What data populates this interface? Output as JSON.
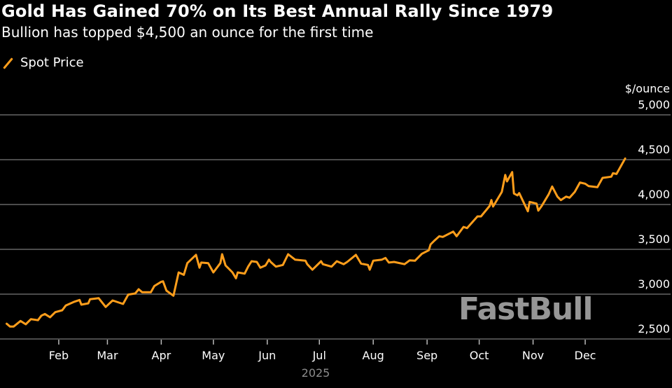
{
  "chart_data": {
    "type": "line",
    "title": "Gold Has Gained 70% on Its Best Annual Rally Since 1979",
    "subtitle": "Bullion has topped $4,500 an ounce for the first time",
    "ylabel": "$/ounce",
    "xlabel": "2025",
    "x_unit": "day of year 2025 (0 = Jan 1)",
    "ylim": [
      2500,
      5000
    ],
    "xlim": [
      0,
      358
    ],
    "grid": true,
    "legend_position": "top-left",
    "y_ticks": [
      {
        "value": 2500,
        "label": "2,500"
      },
      {
        "value": 3000,
        "label": "3,000"
      },
      {
        "value": 3500,
        "label": "3,500"
      },
      {
        "value": 4000,
        "label": "4,000"
      },
      {
        "value": 4500,
        "label": "4,500"
      },
      {
        "value": 5000,
        "label": "5,000"
      }
    ],
    "x_ticks": [
      {
        "day": 31,
        "label": "Feb"
      },
      {
        "day": 59,
        "label": "Mar"
      },
      {
        "day": 90,
        "label": "Apr"
      },
      {
        "day": 120,
        "label": "May"
      },
      {
        "day": 151,
        "label": "Jun"
      },
      {
        "day": 181,
        "label": "Jul"
      },
      {
        "day": 212,
        "label": "Aug"
      },
      {
        "day": 243,
        "label": "Sep"
      },
      {
        "day": 273,
        "label": "Oct"
      },
      {
        "day": 304,
        "label": "Nov"
      },
      {
        "day": 334,
        "label": "Dec"
      }
    ],
    "series": [
      {
        "name": "Spot Price",
        "color": "#ff9e1b",
        "points": [
          [
            1,
            2670
          ],
          [
            3,
            2638
          ],
          [
            5,
            2638
          ],
          [
            9,
            2701
          ],
          [
            12,
            2664
          ],
          [
            15,
            2721
          ],
          [
            19,
            2709
          ],
          [
            21,
            2760
          ],
          [
            23,
            2779
          ],
          [
            26,
            2742
          ],
          [
            29,
            2799
          ],
          [
            33,
            2820
          ],
          [
            35,
            2873
          ],
          [
            40,
            2916
          ],
          [
            43,
            2935
          ],
          [
            44,
            2883
          ],
          [
            48,
            2898
          ],
          [
            49,
            2943
          ],
          [
            54,
            2955
          ],
          [
            58,
            2857
          ],
          [
            62,
            2930
          ],
          [
            68,
            2891
          ],
          [
            71,
            2995
          ],
          [
            75,
            3008
          ],
          [
            77,
            3055
          ],
          [
            79,
            3021
          ],
          [
            84,
            3021
          ],
          [
            86,
            3091
          ],
          [
            90,
            3138
          ],
          [
            91,
            3143
          ],
          [
            93,
            3039
          ],
          [
            97,
            2982
          ],
          [
            100,
            3242
          ],
          [
            103,
            3216
          ],
          [
            105,
            3346
          ],
          [
            110,
            3438
          ],
          [
            112,
            3295
          ],
          [
            113,
            3352
          ],
          [
            117,
            3346
          ],
          [
            120,
            3242
          ],
          [
            124,
            3346
          ],
          [
            125,
            3445
          ],
          [
            127,
            3320
          ],
          [
            129,
            3281
          ],
          [
            131,
            3242
          ],
          [
            133,
            3177
          ],
          [
            134,
            3242
          ],
          [
            138,
            3229
          ],
          [
            140,
            3307
          ],
          [
            142,
            3367
          ],
          [
            145,
            3359
          ],
          [
            147,
            3295
          ],
          [
            150,
            3320
          ],
          [
            152,
            3385
          ],
          [
            153,
            3359
          ],
          [
            156,
            3307
          ],
          [
            160,
            3326
          ],
          [
            163,
            3445
          ],
          [
            167,
            3385
          ],
          [
            173,
            3373
          ],
          [
            174,
            3334
          ],
          [
            177,
            3273
          ],
          [
            182,
            3367
          ],
          [
            183,
            3334
          ],
          [
            188,
            3307
          ],
          [
            191,
            3367
          ],
          [
            195,
            3334
          ],
          [
            197,
            3359
          ],
          [
            202,
            3438
          ],
          [
            205,
            3341
          ],
          [
            209,
            3326
          ],
          [
            210,
            3273
          ],
          [
            212,
            3373
          ],
          [
            217,
            3385
          ],
          [
            219,
            3404
          ],
          [
            221,
            3352
          ],
          [
            224,
            3359
          ],
          [
            230,
            3334
          ],
          [
            233,
            3377
          ],
          [
            236,
            3373
          ],
          [
            240,
            3451
          ],
          [
            244,
            3490
          ],
          [
            245,
            3555
          ],
          [
            247,
            3594
          ],
          [
            250,
            3646
          ],
          [
            252,
            3638
          ],
          [
            258,
            3698
          ],
          [
            260,
            3646
          ],
          [
            264,
            3750
          ],
          [
            266,
            3737
          ],
          [
            272,
            3867
          ],
          [
            274,
            3867
          ],
          [
            279,
            3984
          ],
          [
            280,
            4049
          ],
          [
            281,
            3977
          ],
          [
            286,
            4141
          ],
          [
            288,
            4330
          ],
          [
            289,
            4258
          ],
          [
            292,
            4362
          ],
          [
            293,
            4123
          ],
          [
            295,
            4102
          ],
          [
            296,
            4127
          ],
          [
            301,
            3924
          ],
          [
            302,
            4029
          ],
          [
            306,
            4010
          ],
          [
            307,
            3932
          ],
          [
            309,
            3984
          ],
          [
            313,
            4115
          ],
          [
            315,
            4201
          ],
          [
            318,
            4088
          ],
          [
            320,
            4049
          ],
          [
            323,
            4088
          ],
          [
            325,
            4076
          ],
          [
            328,
            4141
          ],
          [
            331,
            4245
          ],
          [
            334,
            4232
          ],
          [
            336,
            4205
          ],
          [
            341,
            4193
          ],
          [
            344,
            4297
          ],
          [
            349,
            4310
          ],
          [
            350,
            4349
          ],
          [
            352,
            4341
          ],
          [
            357,
            4513
          ]
        ]
      }
    ]
  },
  "watermark": "FastBull"
}
